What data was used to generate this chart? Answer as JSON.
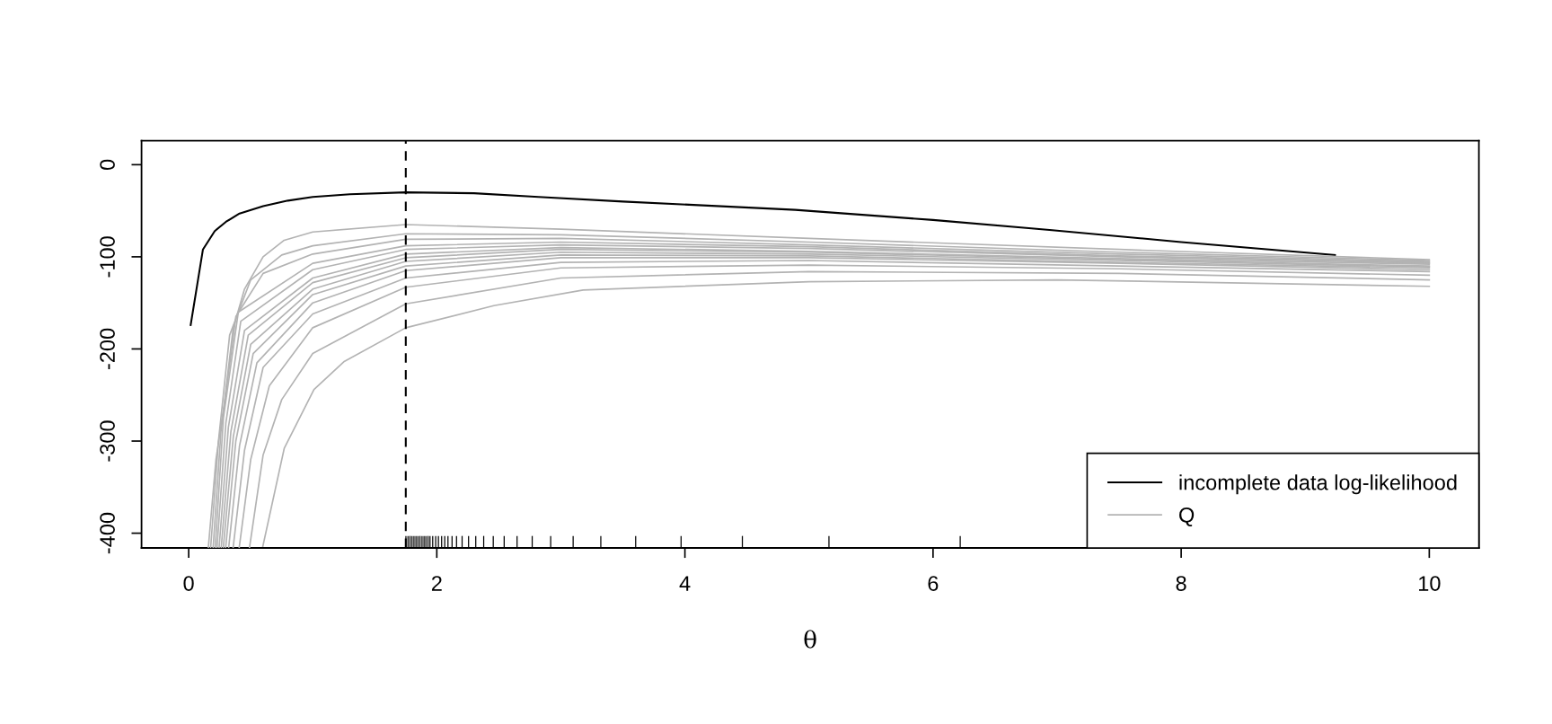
{
  "chart_data": {
    "type": "line",
    "xlabel": "θ",
    "xlim": [
      -0.38,
      10.4
    ],
    "ylim": [
      -416,
      26
    ],
    "xticks": [
      0,
      2,
      4,
      6,
      8,
      10
    ],
    "yticks": [
      {
        "value": 0,
        "label": "0"
      },
      {
        "value": -100,
        "label": "-100"
      },
      {
        "value": -200,
        "label": "-200"
      },
      {
        "value": -300,
        "label": "-300"
      },
      {
        "value": -400,
        "label": "-400"
      }
    ],
    "legend": "bottom right",
    "grid": false,
    "ref_lines": [
      {
        "axis": "x",
        "value": 1.75,
        "color": "#000000",
        "line_style": "dashed"
      }
    ],
    "series": [
      {
        "name": "incomplete data log-likelihood",
        "color": "#000000",
        "x": [
          0.016,
          0.115,
          0.21,
          0.3,
          0.41,
          0.6,
          0.8,
          1.0,
          1.3,
          1.75,
          2.3,
          2.82,
          3.5,
          4.89,
          6,
          6.96,
          8,
          9.24
        ],
        "values": [
          -174,
          -92,
          -72,
          -62,
          -53,
          -45,
          -39,
          -35,
          -32,
          -30,
          -31,
          -35,
          -40,
          -49,
          -60,
          -71,
          -84,
          -98
        ]
      },
      {
        "name": "Q",
        "color": "#b3b3b3",
        "x": [
          0.595,
          0.77,
          1.01,
          1.25,
          1.75,
          2.46,
          3.18,
          5,
          7,
          10
        ],
        "values": [
          -416,
          -308,
          -244,
          -214,
          -177,
          -153,
          -136,
          -127,
          -125,
          -132
        ]
      },
      {
        "color": "#b3b3b3",
        "x": [
          0.49,
          0.6,
          0.75,
          1.0,
          1.75,
          3,
          5,
          7.5,
          10
        ],
        "values": [
          -416,
          -315,
          -255,
          -205,
          -151,
          -123,
          -116,
          -118,
          -125
        ]
      },
      {
        "color": "#b3b3b3",
        "x": [
          0.407,
          0.5,
          0.65,
          1.0,
          1.75,
          3,
          5,
          7.5,
          10
        ],
        "values": [
          -416,
          -320,
          -240,
          -177,
          -133,
          -112,
          -109,
          -113,
          -120
        ]
      },
      {
        "color": "#b3b3b3",
        "x": [
          0.358,
          0.45,
          0.6,
          1.0,
          1.75,
          3,
          5,
          7.5,
          10
        ],
        "values": [
          -416,
          -310,
          -220,
          -162,
          -123,
          -106,
          -104,
          -110,
          -116
        ]
      },
      {
        "color": "#b3b3b3",
        "x": [
          0.322,
          0.41,
          0.55,
          1.0,
          1.75,
          3,
          5,
          7.5,
          10
        ],
        "values": [
          -416,
          -305,
          -215,
          -150,
          -115,
          -101,
          -101,
          -107,
          -114
        ]
      },
      {
        "color": "#b3b3b3",
        "x": [
          0.298,
          0.38,
          0.52,
          1.0,
          1.75,
          3,
          5,
          7.5,
          10
        ],
        "values": [
          -416,
          -300,
          -205,
          -141,
          -110,
          -98,
          -99,
          -106,
          -112
        ]
      },
      {
        "color": "#b3b3b3",
        "x": [
          0.279,
          0.36,
          0.5,
          1.0,
          1.75,
          3,
          5,
          7.5,
          10
        ],
        "values": [
          -416,
          -295,
          -195,
          -135,
          -105,
          -95,
          -97,
          -104,
          -111
        ]
      },
      {
        "color": "#b3b3b3",
        "x": [
          0.262,
          0.34,
          0.48,
          1.0,
          1.75,
          3,
          5,
          7.5,
          10
        ],
        "values": [
          -416,
          -290,
          -185,
          -128,
          -101,
          -92,
          -95,
          -103,
          -110
        ]
      },
      {
        "color": "#b3b3b3",
        "x": [
          0.245,
          0.32,
          0.45,
          1.0,
          1.75,
          3,
          5,
          7.5,
          10
        ],
        "values": [
          -416,
          -285,
          -180,
          -123,
          -97,
          -90,
          -94,
          -102,
          -108
        ]
      },
      {
        "color": "#b3b3b3",
        "x": [
          0.228,
          0.3,
          0.42,
          1.0,
          1.75,
          3,
          5,
          7.5,
          10
        ],
        "values": [
          -416,
          -280,
          -170,
          -114,
          -92,
          -87,
          -91,
          -100,
          -107
        ]
      },
      {
        "color": "#b3b3b3",
        "x": [
          0.214,
          0.28,
          0.4,
          1.0,
          1.75,
          3,
          5,
          7.5,
          10
        ],
        "values": [
          -416,
          -275,
          -160,
          -107,
          -88,
          -84,
          -89,
          -99,
          -106
        ]
      },
      {
        "color": "#b3b3b3",
        "x": [
          0.197,
          0.26,
          0.38,
          0.6,
          1.0,
          1.75,
          3,
          5,
          7.5,
          10
        ],
        "values": [
          -416,
          -290,
          -165,
          -118,
          -97,
          -81,
          -80,
          -87,
          -97,
          -105
        ]
      },
      {
        "color": "#b3b3b3",
        "x": [
          0.177,
          0.24,
          0.33,
          0.5,
          0.75,
          1.0,
          1.75,
          3,
          5,
          7.5,
          10
        ],
        "values": [
          -416,
          -300,
          -185,
          -125,
          -98,
          -88,
          -75,
          -76,
          -84,
          -95,
          -104
        ]
      },
      {
        "color": "#b3b3b3",
        "x": [
          0.158,
          0.22,
          0.286,
          0.358,
          0.45,
          0.6,
          0.77,
          1.0,
          1.75,
          3,
          5,
          7.5,
          10
        ],
        "values": [
          -416,
          -320,
          -260,
          -178,
          -135,
          -100,
          -82,
          -73,
          -65,
          -70,
          -80,
          -92,
          -103
        ]
      },
      {
        "type": "bar",
        "base": [
          -416,
          -416,
          -416,
          -416,
          -416,
          -416,
          -416,
          -416,
          -416,
          -416,
          -416,
          -416,
          -416,
          -416,
          -416,
          -416,
          -416,
          -416,
          -416,
          -416,
          -416,
          -416,
          -416,
          -416,
          -416,
          -416,
          -416,
          -416,
          -416,
          -416,
          -416,
          -416,
          -416,
          -416,
          -416,
          -416,
          -416
        ],
        "color": "#000000",
        "x": [
          1.751,
          1.768,
          1.784,
          1.8,
          1.816,
          1.832,
          1.848,
          1.864,
          1.881,
          1.897,
          1.912,
          1.929,
          1.945,
          1.967,
          1.991,
          2.013,
          2.039,
          2.064,
          2.09,
          2.123,
          2.159,
          2.204,
          2.256,
          2.314,
          2.378,
          2.455,
          2.543,
          2.647,
          2.769,
          2.918,
          3.099,
          3.322,
          3.603,
          3.969,
          4.463,
          5.161,
          6.219
        ],
        "values": [
          13,
          13,
          13,
          13,
          13,
          13,
          13,
          13,
          13,
          13,
          13,
          13,
          13,
          13,
          13,
          13,
          13,
          13,
          13,
          13,
          13,
          13,
          13,
          13,
          13,
          13,
          13,
          13,
          13,
          13,
          13,
          13,
          13,
          13,
          13,
          13,
          13
        ]
      }
    ]
  }
}
